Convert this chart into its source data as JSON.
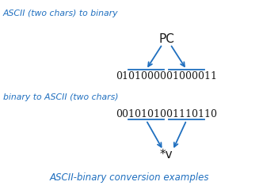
{
  "bg_color": "#ffffff",
  "blue_color": "#1f6fbf",
  "text_color": "#1a1a1a",
  "label1": "ASCII (two chars) to binary",
  "label2": "binary to ASCII (two chars)",
  "label3": "ASCII-binary conversion examples",
  "pc_text": "PC",
  "binary1": "0101000001000011",
  "binary2": "0010101001110110",
  "result_text": "*v"
}
